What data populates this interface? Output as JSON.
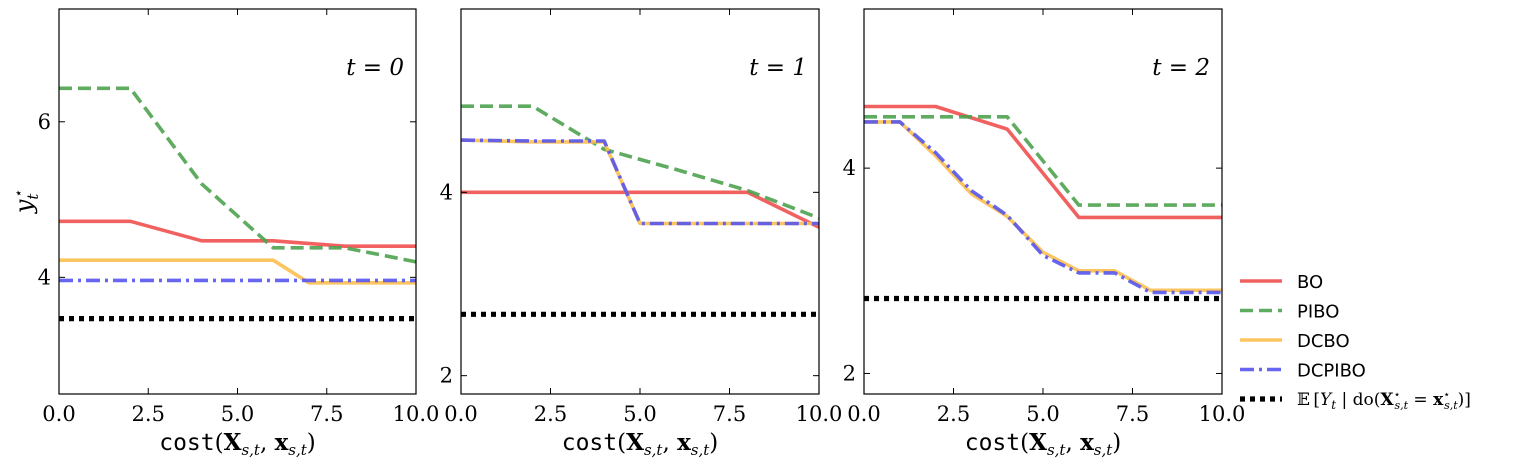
{
  "chart_data": [
    {
      "type": "line",
      "panel_label": "t = 0",
      "xlabel": "cost(X_{s,t}, x_{s,t})",
      "ylabel": "y_t*",
      "xlim": [
        0,
        10
      ],
      "ylim": [
        2.5,
        7.45
      ],
      "xticks": [
        0,
        2.5,
        5,
        7.5,
        10
      ],
      "xtick_labels": [
        "0.0",
        "2.5",
        "5.0",
        "7.5",
        "10.0"
      ],
      "yticks": [
        4,
        6
      ],
      "ytick_labels": [
        "4",
        "6"
      ],
      "series": [
        {
          "name": "BO",
          "x": [
            0,
            2,
            4,
            6,
            8,
            10
          ],
          "y": [
            4.72,
            4.72,
            4.47,
            4.47,
            4.4,
            4.4
          ]
        },
        {
          "name": "PIBO",
          "x": [
            0,
            2,
            4,
            6,
            8,
            10
          ],
          "y": [
            6.43,
            6.43,
            5.2,
            4.38,
            4.38,
            4.2
          ]
        },
        {
          "name": "DCBO",
          "x": [
            0,
            6,
            7,
            10
          ],
          "y": [
            4.22,
            4.22,
            3.93,
            3.93
          ]
        },
        {
          "name": "DCPIBO",
          "x": [
            0,
            10
          ],
          "y": [
            3.96,
            3.96
          ]
        },
        {
          "name": "E[Y_t | do(X*_{s,t} = x*_{s,t})]",
          "x": [
            0,
            10
          ],
          "y": [
            3.47,
            3.47
          ]
        }
      ]
    },
    {
      "type": "line",
      "panel_label": "t = 1",
      "xlabel": "cost(X_{s,t}, x_{s,t})",
      "xlim": [
        0,
        10
      ],
      "ylim": [
        1.8,
        6.0
      ],
      "xticks": [
        0,
        2.5,
        5,
        7.5,
        10
      ],
      "xtick_labels": [
        "0.0",
        "2.5",
        "5.0",
        "7.5",
        "10.0"
      ],
      "yticks": [
        2,
        4
      ],
      "ytick_labels": [
        "2",
        "4"
      ],
      "series": [
        {
          "name": "BO",
          "x": [
            0,
            8,
            10
          ],
          "y": [
            4.0,
            4.0,
            3.62
          ]
        },
        {
          "name": "PIBO",
          "x": [
            0,
            2,
            4,
            6,
            8,
            10
          ],
          "y": [
            4.94,
            4.94,
            4.47,
            4.25,
            4.02,
            3.72
          ]
        },
        {
          "name": "DCBO",
          "x": [
            0,
            2,
            4,
            5,
            10
          ],
          "y": [
            4.57,
            4.55,
            4.55,
            3.66,
            3.66
          ]
        },
        {
          "name": "DCPIBO",
          "x": [
            0,
            2,
            4,
            5,
            10
          ],
          "y": [
            4.57,
            4.56,
            4.56,
            3.66,
            3.66
          ]
        },
        {
          "name": "E[Y_t | do(X*_{s,t} = x*_{s,t})]",
          "x": [
            0,
            10
          ],
          "y": [
            2.67,
            2.67
          ]
        }
      ]
    },
    {
      "type": "line",
      "panel_label": "t = 2",
      "xlabel": "cost(X_{s,t}, x_{s,t})",
      "xlim": [
        0,
        10
      ],
      "ylim": [
        1.8,
        5.55
      ],
      "xticks": [
        0,
        2.5,
        5,
        7.5,
        10
      ],
      "xtick_labels": [
        "0.0",
        "2.5",
        "5.0",
        "7.5",
        "10.0"
      ],
      "yticks": [
        2,
        4
      ],
      "ytick_labels": [
        "2",
        "4"
      ],
      "series": [
        {
          "name": "BO",
          "x": [
            0,
            2,
            4,
            6,
            10
          ],
          "y": [
            4.6,
            4.6,
            4.38,
            3.52,
            3.52
          ]
        },
        {
          "name": "PIBO",
          "x": [
            0,
            4,
            6,
            10
          ],
          "y": [
            4.5,
            4.5,
            3.64,
            3.64
          ]
        },
        {
          "name": "DCBO",
          "x": [
            0,
            1,
            2,
            3,
            4,
            5,
            6,
            7,
            8,
            10
          ],
          "y": [
            4.45,
            4.45,
            4.12,
            3.75,
            3.53,
            3.18,
            3.0,
            3.0,
            2.81,
            2.81
          ]
        },
        {
          "name": "DCPIBO",
          "x": [
            0,
            1,
            2,
            3,
            4,
            5,
            6,
            7,
            8,
            10
          ],
          "y": [
            4.45,
            4.45,
            4.15,
            3.78,
            3.54,
            3.15,
            2.98,
            2.98,
            2.79,
            2.79
          ]
        },
        {
          "name": "E[Y_t | do(X*_{s,t} = x*_{s,t})]",
          "x": [
            0,
            10
          ],
          "y": [
            2.73,
            2.73
          ]
        }
      ]
    }
  ],
  "legend": {
    "position": "right",
    "entries": [
      {
        "label": "BO",
        "color": "#f0504f",
        "style": "solid"
      },
      {
        "label": "PIBO",
        "color": "#4ea24f",
        "style": "dashed"
      },
      {
        "label": "DCBO",
        "color": "#fdbf4f",
        "style": "solid"
      },
      {
        "label": "DCPIBO",
        "color": "#5555ee",
        "style": "dashdot"
      },
      {
        "label": "E[Y_t | do(X*_{s,t} = x*_{s,t})]",
        "color": "#000000",
        "style": "dotted"
      }
    ]
  },
  "colors": {
    "BO": "#f0504f",
    "PIBO": "#4ea24f",
    "DCBO": "#fdbf4f",
    "DCPIBO": "#5555ee",
    "expected": "#000000"
  }
}
